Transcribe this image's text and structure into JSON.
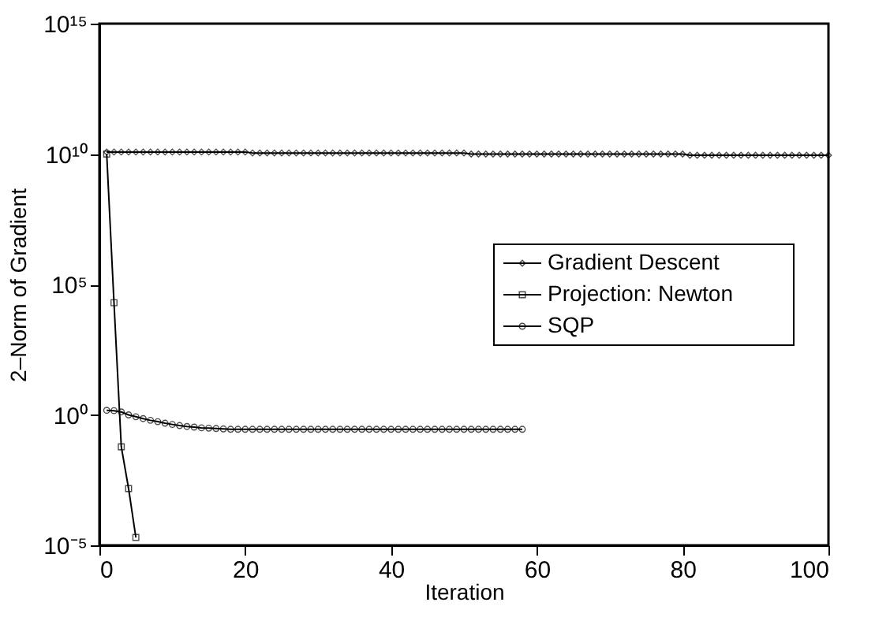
{
  "chart_data": {
    "type": "line",
    "xlabel": "Iteration",
    "ylabel": "2–Norm of Gradient",
    "log": "y",
    "grid": false,
    "legend": "right",
    "line_style": "solid",
    "xlim": [
      0,
      100
    ],
    "xticks": [
      0,
      20,
      40,
      60,
      80,
      100
    ],
    "ylim": [
      1e-05,
      1000000000000000.0
    ],
    "yticks": [
      {
        "value": 1e-05,
        "label": "10⁻⁵"
      },
      {
        "value": 1,
        "label": "10⁰"
      },
      {
        "value": 100000.0,
        "label": "10⁵"
      },
      {
        "value": 10000000000.0,
        "label": "10¹⁰"
      },
      {
        "value": 1000000000000000.0,
        "label": "10¹⁵"
      }
    ],
    "series": [
      {
        "name": "Gradient Descent",
        "color": "#000000",
        "marker": "diamond",
        "x": [
          1,
          2,
          3,
          4,
          5,
          6,
          7,
          8,
          9,
          10,
          11,
          12,
          13,
          14,
          15,
          16,
          17,
          18,
          19,
          20,
          21,
          22,
          23,
          24,
          25,
          26,
          27,
          28,
          29,
          30,
          31,
          32,
          33,
          34,
          35,
          36,
          37,
          38,
          39,
          40,
          41,
          42,
          43,
          44,
          45,
          46,
          47,
          48,
          49,
          50,
          51,
          52,
          53,
          54,
          55,
          56,
          57,
          58,
          59,
          60,
          61,
          62,
          63,
          64,
          65,
          66,
          67,
          68,
          69,
          70,
          71,
          72,
          73,
          74,
          75,
          76,
          77,
          78,
          79,
          80,
          81,
          82,
          83,
          84,
          85,
          86,
          87,
          88,
          89,
          90,
          91,
          92,
          93,
          94,
          95,
          96,
          97,
          98,
          99,
          100
        ],
        "values": [
          12000000000.0,
          12000000000.0,
          12000000000.0,
          12000000000.0,
          12000000000.0,
          12000000000.0,
          12000000000.0,
          12000000000.0,
          12000000000.0,
          12000000000.0,
          12000000000.0,
          12000000000.0,
          12000000000.0,
          12000000000.0,
          12000000000.0,
          12000000000.0,
          12000000000.0,
          12000000000.0,
          12000000000.0,
          12000000000.0,
          11000000000.0,
          11000000000.0,
          11000000000.0,
          11000000000.0,
          11000000000.0,
          11000000000.0,
          11000000000.0,
          11000000000.0,
          11000000000.0,
          11000000000.0,
          11000000000.0,
          11000000000.0,
          11000000000.0,
          11000000000.0,
          11000000000.0,
          11000000000.0,
          11000000000.0,
          11000000000.0,
          11000000000.0,
          11000000000.0,
          11000000000.0,
          11000000000.0,
          11000000000.0,
          11000000000.0,
          11000000000.0,
          11000000000.0,
          11000000000.0,
          11000000000.0,
          11000000000.0,
          11000000000.0,
          10000000000.0,
          10000000000.0,
          10000000000.0,
          10000000000.0,
          10000000000.0,
          10000000000.0,
          10000000000.0,
          10000000000.0,
          10000000000.0,
          10000000000.0,
          10000000000.0,
          10000000000.0,
          10000000000.0,
          10000000000.0,
          10000000000.0,
          10000000000.0,
          10000000000.0,
          10000000000.0,
          10000000000.0,
          10000000000.0,
          10000000000.0,
          10000000000.0,
          10000000000.0,
          10000000000.0,
          10000000000.0,
          10000000000.0,
          10000000000.0,
          10000000000.0,
          10000000000.0,
          10000000000.0,
          9000000000.0,
          9000000000.0,
          9000000000.0,
          9000000000.0,
          9000000000.0,
          9000000000.0,
          9000000000.0,
          9000000000.0,
          9000000000.0,
          9000000000.0,
          9000000000.0,
          9000000000.0,
          9000000000.0,
          9000000000.0,
          9000000000.0,
          9000000000.0,
          9000000000.0,
          9000000000.0,
          9000000000.0,
          9000000000.0
        ]
      },
      {
        "name": "Projection: Newton",
        "color": "#000000",
        "marker": "square",
        "x": [
          1,
          2,
          3,
          4,
          5
        ],
        "values": [
          10000000000.0,
          20000.0,
          0.06,
          0.0015,
          2e-05
        ]
      },
      {
        "name": "SQP",
        "color": "#000000",
        "marker": "circle",
        "x": [
          1,
          2,
          3,
          4,
          5,
          6,
          7,
          8,
          9,
          10,
          11,
          12,
          13,
          14,
          15,
          16,
          17,
          18,
          19,
          20,
          21,
          22,
          23,
          24,
          25,
          26,
          27,
          28,
          29,
          30,
          31,
          32,
          33,
          34,
          35,
          36,
          37,
          38,
          39,
          40,
          41,
          42,
          43,
          44,
          45,
          46,
          47,
          48,
          49,
          50,
          51,
          52,
          53,
          54,
          55,
          56,
          57,
          58
        ],
        "values": [
          1.5,
          1.45,
          1.3,
          1.0,
          0.85,
          0.72,
          0.62,
          0.55,
          0.48,
          0.43,
          0.39,
          0.36,
          0.34,
          0.32,
          0.31,
          0.3,
          0.29,
          0.28,
          0.28,
          0.28,
          0.28,
          0.28,
          0.28,
          0.28,
          0.28,
          0.28,
          0.28,
          0.28,
          0.28,
          0.28,
          0.28,
          0.28,
          0.28,
          0.28,
          0.28,
          0.28,
          0.28,
          0.28,
          0.28,
          0.28,
          0.28,
          0.28,
          0.28,
          0.28,
          0.28,
          0.28,
          0.28,
          0.28,
          0.28,
          0.28,
          0.28,
          0.28,
          0.28,
          0.28,
          0.28,
          0.28,
          0.28,
          0.28
        ]
      }
    ]
  }
}
